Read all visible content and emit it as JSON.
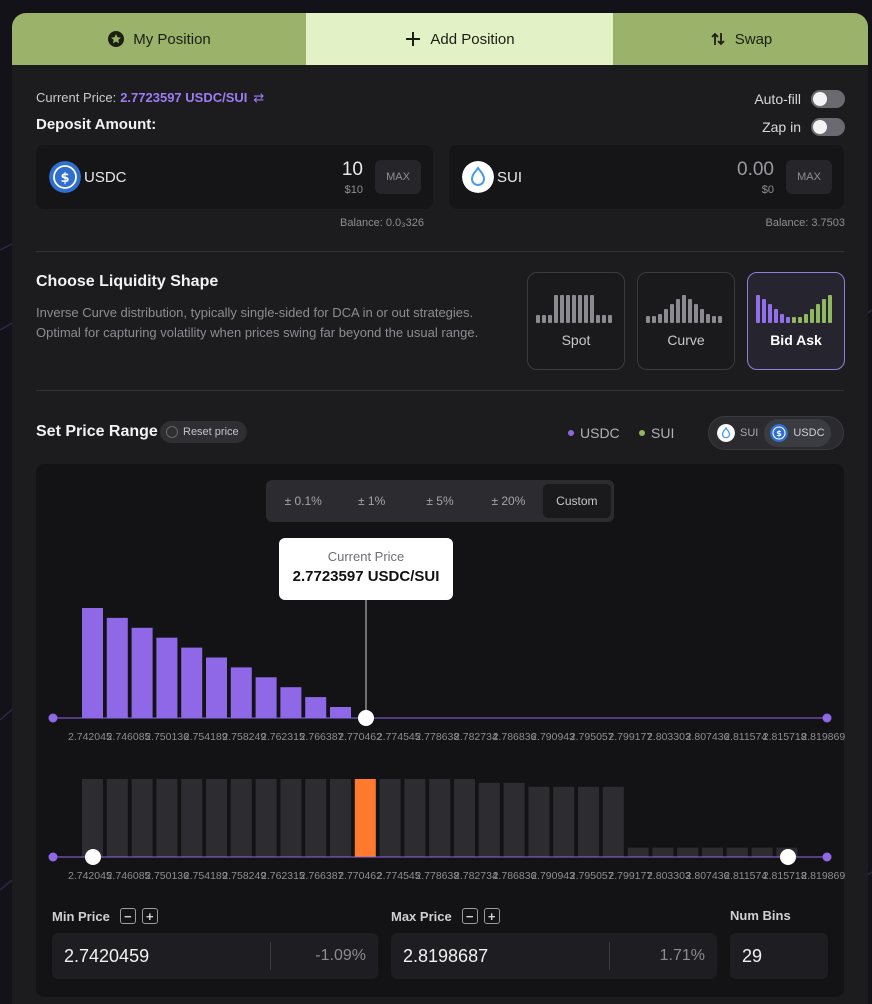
{
  "tabs": [
    {
      "label": "My Position",
      "icon": "star-circle-icon"
    },
    {
      "label": "Add Position",
      "icon": "plus-icon"
    },
    {
      "label": "Swap",
      "icon": "swap-arrows-icon"
    }
  ],
  "current_price": {
    "label": "Current Price:",
    "value": "2.7723597 USDC/SUI"
  },
  "deposit": {
    "title": "Deposit Amount:"
  },
  "toggles": {
    "autofill": "Auto-fill",
    "zapin": "Zap in"
  },
  "tokens": [
    {
      "symbol": "USDC",
      "amount": "10",
      "usd": "$10",
      "max": "MAX",
      "balance": "Balance: 0.0₃326"
    },
    {
      "symbol": "SUI",
      "amount": "0.00",
      "usd": "$0",
      "max": "MAX",
      "balance": "Balance: 3.7503"
    }
  ],
  "shape": {
    "title": "Choose Liquidity Shape",
    "description": "Inverse Curve distribution, typically single-sided for DCA in or out strategies. Optimal for capturing volatility when prices swing far beyond the usual range.",
    "options": [
      {
        "label": "Spot",
        "active": false
      },
      {
        "label": "Curve",
        "active": false
      },
      {
        "label": "Bid Ask",
        "active": true
      }
    ]
  },
  "range": {
    "title": "Set Price Range",
    "reset": "Reset price",
    "legend_usdc": "USDC",
    "legend_sui": "SUI",
    "pair": [
      "SUI",
      "USDC"
    ],
    "pct_options": [
      "± 0.1%",
      "± 1%",
      "± 5%",
      "± 20%",
      "Custom"
    ],
    "tooltip_title": "Current Price",
    "tooltip_value": "2.7723597 USDC/SUI"
  },
  "colors": {
    "usdc": "#8f68e8",
    "sui": "#90b860",
    "active_bin": "#ff7a2e",
    "bin": "#2d2d31"
  },
  "chart_data": [
    {
      "type": "bar",
      "title": "",
      "series": [
        {
          "name": "USDC",
          "values": [
            10,
            9.1,
            8.2,
            7.3,
            6.4,
            5.5,
            4.6,
            3.7,
            2.8,
            1.9,
            1.0
          ]
        }
      ],
      "ticks": [
        "2.742045",
        "2.746085",
        "2.750136",
        "2.754189",
        "2.758249",
        "2.762315",
        "2.766387",
        "2.770462",
        "2.774545",
        "2.778638",
        "2.782734",
        "2.786836",
        "2.790943",
        "2.795057",
        "2.799177",
        "2.803303",
        "2.807436",
        "2.811574",
        "2.815718",
        "2.819869"
      ]
    },
    {
      "type": "bar",
      "title": "",
      "values": [
        10,
        10,
        10,
        10,
        10,
        10,
        10,
        10,
        10,
        10,
        10,
        10,
        10,
        10,
        10,
        10,
        9.5,
        9.5,
        9.0,
        9.0,
        9.0,
        9.0,
        1.2,
        1.2,
        1.2,
        1.2,
        1.2,
        1.2,
        1.2
      ],
      "active_index": 11
    }
  ],
  "inputs": {
    "min": {
      "label": "Min Price",
      "value": "2.7420459",
      "pct": "-1.09%"
    },
    "max": {
      "label": "Max Price",
      "value": "2.8198687",
      "pct": "1.71%"
    },
    "bins": {
      "label": "Num Bins",
      "value": "29"
    }
  }
}
